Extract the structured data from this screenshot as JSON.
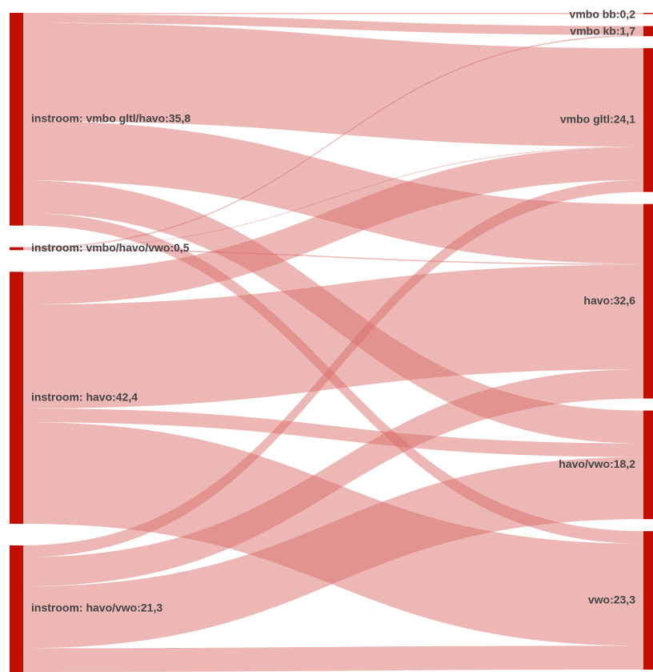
{
  "chart_data": {
    "type": "sankey",
    "colors": {
      "node": "#c00f00",
      "link": "#d9706a"
    },
    "source_nodes": [
      {
        "id": "s_vmbo",
        "name": "instroom: vmbo gltl/havo",
        "value": "35,8"
      },
      {
        "id": "s_vmbohv",
        "name": "instroom: vmbo/havo/vwo",
        "value": "0,5"
      },
      {
        "id": "s_havo",
        "name": "instroom: havo",
        "value": "42,4"
      },
      {
        "id": "s_hv",
        "name": "instroom: havo/vwo",
        "value": "21,3"
      }
    ],
    "target_nodes": [
      {
        "id": "t_bb",
        "name": "vmbo bb",
        "value": "0,2"
      },
      {
        "id": "t_kb",
        "name": "vmbo kb",
        "value": "1,7"
      },
      {
        "id": "t_gltl",
        "name": "vmbo gltl",
        "value": "24,1"
      },
      {
        "id": "t_havo",
        "name": "havo",
        "value": "32,6"
      },
      {
        "id": "t_hv",
        "name": "havo/vwo",
        "value": "18,2"
      },
      {
        "id": "t_vwo",
        "name": "vwo",
        "value": "23,3"
      }
    ],
    "flows": [
      {
        "source": "s_vmbo",
        "target": "t_bb",
        "value": 0.2
      },
      {
        "source": "s_vmbo",
        "target": "t_kb",
        "value": 1.5
      },
      {
        "source": "s_vmbo",
        "target": "t_gltl",
        "value": 16.5
      },
      {
        "source": "s_vmbo",
        "target": "t_havo",
        "value": 10.0
      },
      {
        "source": "s_vmbo",
        "target": "t_hv",
        "value": 5.5
      },
      {
        "source": "s_vmbo",
        "target": "t_vwo",
        "value": 2.1
      },
      {
        "source": "s_vmbohv",
        "target": "t_kb",
        "value": 0.2
      },
      {
        "source": "s_vmbohv",
        "target": "t_gltl",
        "value": 0.1
      },
      {
        "source": "s_vmbohv",
        "target": "t_havo",
        "value": 0.2
      },
      {
        "source": "s_havo",
        "target": "t_gltl",
        "value": 5.5
      },
      {
        "source": "s_havo",
        "target": "t_havo",
        "value": 17.5
      },
      {
        "source": "s_havo",
        "target": "t_hv",
        "value": 2.3
      },
      {
        "source": "s_havo",
        "target": "t_vwo",
        "value": 17.1
      },
      {
        "source": "s_hv",
        "target": "t_gltl",
        "value": 2.0
      },
      {
        "source": "s_hv",
        "target": "t_havo",
        "value": 4.9
      },
      {
        "source": "s_hv",
        "target": "t_hv",
        "value": 10.4
      },
      {
        "source": "s_hv",
        "target": "t_vwo",
        "value": 4.0
      }
    ]
  }
}
